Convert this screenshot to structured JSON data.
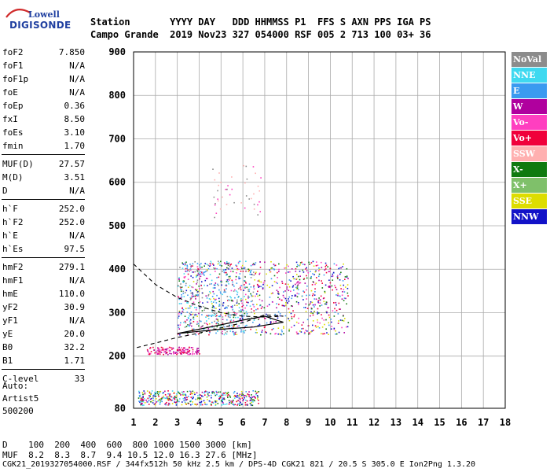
{
  "logo": {
    "line1": "Lowell",
    "line2": "DIGISONDE"
  },
  "header": {
    "row1": "Station       YYYY DAY   DDD HHMMSS P1  FFS S AXN PPS IGA PS",
    "row2": "Campo Grande  2019 Nov23 327 054000 RSF 005 2 713 100 03+ 36"
  },
  "params": [
    [
      {
        "name": "foF2",
        "value": "7.850"
      },
      {
        "name": "foF1",
        "value": "N/A"
      },
      {
        "name": "foF1p",
        "value": "N/A"
      },
      {
        "name": "foE",
        "value": "N/A"
      },
      {
        "name": "foEp",
        "value": "0.36"
      },
      {
        "name": "fxI",
        "value": "8.50"
      },
      {
        "name": "foEs",
        "value": "3.10"
      },
      {
        "name": "fmin",
        "value": "1.70"
      }
    ],
    [
      {
        "name": "MUF(D)",
        "value": "27.57"
      },
      {
        "name": "M(D)",
        "value": "3.51"
      },
      {
        "name": "D",
        "value": "N/A"
      }
    ],
    [
      {
        "name": "h`F",
        "value": "252.0"
      },
      {
        "name": "h`F2",
        "value": "252.0"
      },
      {
        "name": "h`E",
        "value": "N/A"
      },
      {
        "name": "h`Es",
        "value": "97.5"
      }
    ],
    [
      {
        "name": "hmF2",
        "value": "279.1"
      },
      {
        "name": "hmF1",
        "value": "N/A"
      },
      {
        "name": "hmE",
        "value": "110.0"
      },
      {
        "name": "yF2",
        "value": "30.9"
      },
      {
        "name": "yF1",
        "value": "N/A"
      },
      {
        "name": "yE",
        "value": "20.0"
      },
      {
        "name": "B0",
        "value": "32.2"
      },
      {
        "name": "B1",
        "value": "1.71"
      }
    ],
    [
      {
        "name": "C-level",
        "value": "33"
      }
    ]
  ],
  "auto": [
    "Auto:",
    "Artist5",
    "500200"
  ],
  "legend": [
    {
      "label": "NoVal",
      "color": "#8c8c8c"
    },
    {
      "label": "NNE",
      "color": "#3fd9f0"
    },
    {
      "label": "E",
      "color": "#3a9af0"
    },
    {
      "label": "W",
      "color": "#b0009e"
    },
    {
      "label": "Vo-",
      "color": "#ff3fc0"
    },
    {
      "label": "Vo+",
      "color": "#f0003a"
    },
    {
      "label": "SSW",
      "color": "#ffb0b0"
    },
    {
      "label": "X-",
      "color": "#0f7a0f"
    },
    {
      "label": "X+",
      "color": "#7fc06a"
    },
    {
      "label": "SSE",
      "color": "#dddd00"
    },
    {
      "label": "NNW",
      "color": "#1212c8"
    }
  ],
  "bottom": {
    "d_row": "D    100  200  400  600  800 1000 1500 3000 [km]",
    "muf_row": "MUF  8.2  8.3  8.7  9.4 10.5 12.0 16.3 27.6 [MHz]"
  },
  "footer": "CGK21_2019327054000.RSF / 344fx512h 50 kHz 2.5 km / DPS-4D CGK21 821 / 20.5 S 305.0 E Ion2Png 1.3.20",
  "chart_data": {
    "type": "scatter",
    "xlim": [
      1,
      18
    ],
    "ylim": [
      80,
      900
    ],
    "x_ticks": [
      1,
      2,
      3,
      4,
      5,
      6,
      7,
      8,
      9,
      10,
      11,
      12,
      13,
      14,
      15,
      16,
      17,
      18
    ],
    "y_ticks": [
      80,
      200,
      300,
      400,
      500,
      600,
      700,
      800,
      900
    ],
    "grid": true,
    "legend_position": "right",
    "echo_clusters": [
      {
        "name": "F-trace",
        "x_range": [
          3.0,
          10.8
        ],
        "y_range": [
          250,
          420
        ],
        "colors": [
          "#f0003a",
          "#ff3fc0",
          "#b0009e",
          "#1212c8",
          "#dddd00",
          "#0f7a0f",
          "#3a9af0"
        ],
        "count": 900
      },
      {
        "name": "F-spread-cyan",
        "x_range": [
          3.0,
          6.5
        ],
        "y_range": [
          250,
          420
        ],
        "colors": [
          "#3fd9f0",
          "#3a9af0",
          "#8c8c8c"
        ],
        "count": 300
      },
      {
        "name": "Es-trace",
        "x_range": [
          1.6,
          4.0
        ],
        "y_range": [
          205,
          222
        ],
        "colors": [
          "#f0003a",
          "#ff3fc0",
          "#b0009e"
        ],
        "count": 140
      },
      {
        "name": "E-ground",
        "x_range": [
          1.2,
          6.7
        ],
        "y_range": [
          88,
          122
        ],
        "colors": [
          "#b0009e",
          "#1212c8",
          "#3a9af0",
          "#3fd9f0",
          "#dddd00",
          "#0f7a0f",
          "#f0003a"
        ],
        "count": 420
      },
      {
        "name": "high-scatter",
        "x_range": [
          4.6,
          6.8
        ],
        "y_range": [
          520,
          640
        ],
        "colors": [
          "#ffb0b0",
          "#8c8c8c",
          "#ff3fc0"
        ],
        "count": 45
      }
    ],
    "curves": {
      "dashed": [
        [
          1.0,
          412
        ],
        [
          2.0,
          365
        ],
        [
          3.0,
          335
        ],
        [
          4.0,
          315
        ],
        [
          5.0,
          300
        ],
        [
          6.0,
          292
        ],
        [
          7.0,
          290
        ],
        [
          7.85,
          292
        ],
        [
          7.0,
          295
        ],
        [
          6.0,
          277
        ],
        [
          5.0,
          265
        ],
        [
          4.0,
          253
        ],
        [
          3.0,
          243
        ],
        [
          2.0,
          230
        ],
        [
          1.0,
          218
        ]
      ],
      "solid": [
        [
          3.0,
          252
        ],
        [
          4.0,
          262
        ],
        [
          5.0,
          272
        ],
        [
          6.0,
          283
        ],
        [
          7.0,
          292
        ],
        [
          7.6,
          282
        ],
        [
          7.85,
          278
        ],
        [
          6.5,
          267
        ],
        [
          5.0,
          262
        ],
        [
          4.0,
          257
        ],
        [
          3.0,
          252
        ]
      ]
    }
  }
}
